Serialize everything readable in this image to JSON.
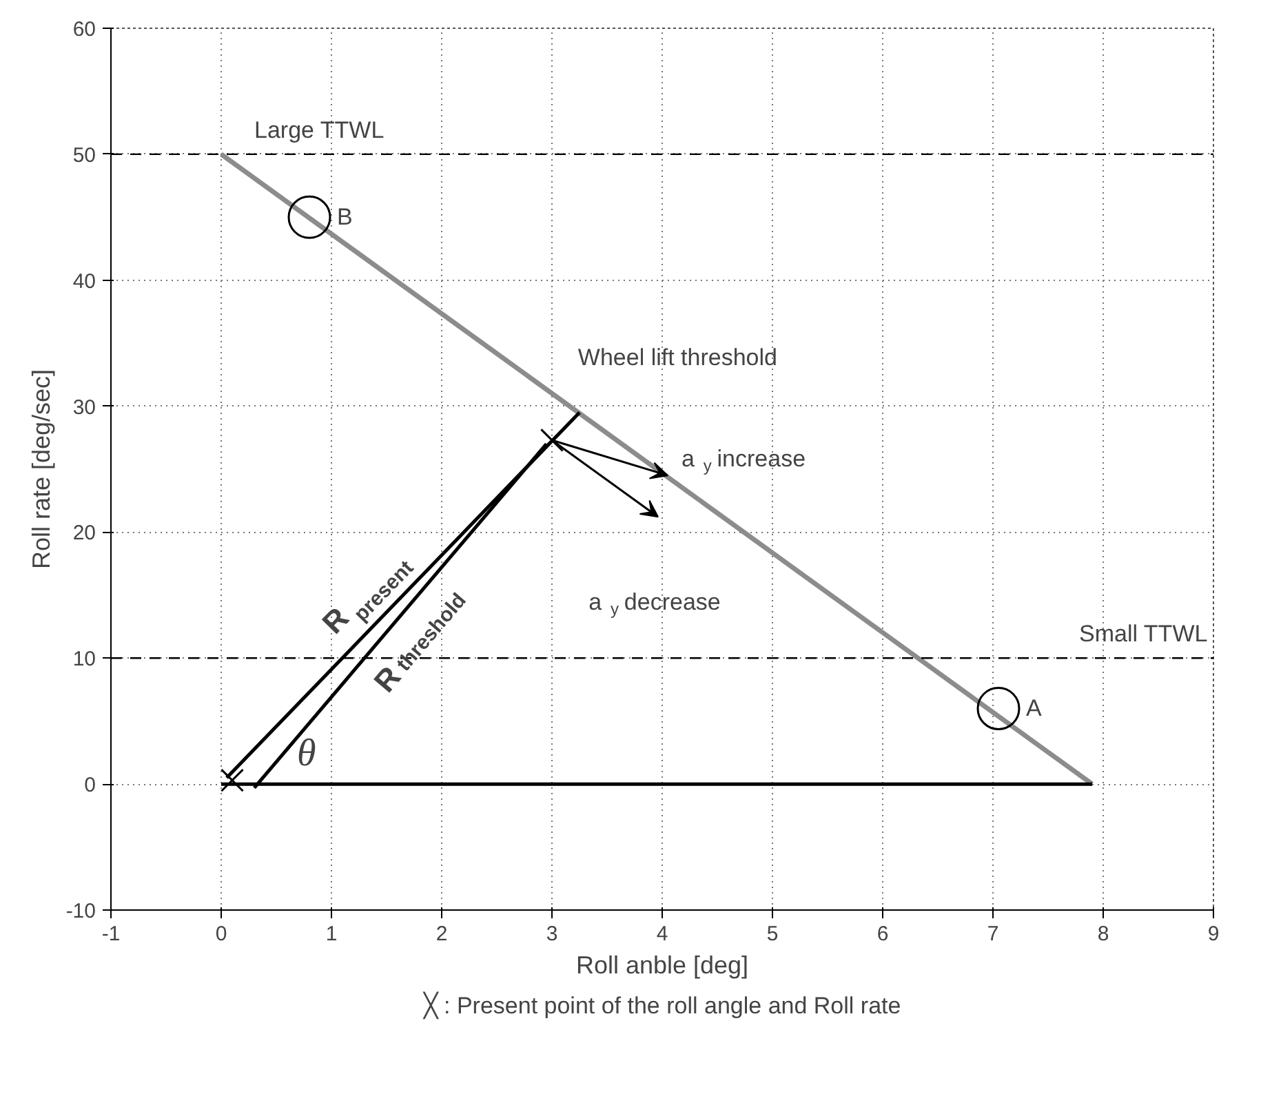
{
  "chart_data": {
    "type": "line",
    "xlabel": "Roll anble [deg]",
    "ylabel": "Roll rate [deg/sec]",
    "xlim": [
      -1,
      9
    ],
    "ylim": [
      -10,
      60
    ],
    "xticks": [
      -1,
      0,
      1,
      2,
      3,
      4,
      5,
      6,
      7,
      8,
      9
    ],
    "yticks": [
      -10,
      0,
      10,
      20,
      30,
      40,
      50,
      60
    ],
    "grid": true,
    "series": [
      {
        "color": "#8c8c8c",
        "x": [
          0,
          7.9
        ],
        "values": [
          50,
          0
        ]
      },
      {
        "color": "#000000",
        "x": [
          0.05,
          3.25
        ],
        "values": [
          0.5,
          29.5
        ]
      },
      {
        "color": "#000000",
        "x": [
          0.3,
          2.95
        ],
        "values": [
          -0.3,
          27
        ]
      },
      {
        "color": "#000000",
        "x": [
          0,
          7.9
        ],
        "values": [
          0,
          0
        ]
      },
      {
        "type": "scatter",
        "marker": "circle",
        "color": "#000000",
        "x": [
          7.05,
          0.8
        ],
        "values": [
          6,
          45
        ]
      },
      {
        "type": "scatter",
        "marker": "cross",
        "color": "#000000",
        "x": [
          0.1,
          3.0
        ],
        "values": [
          0.3,
          27.3
        ]
      }
    ],
    "ref_lines": [
      {
        "axis": "y",
        "value": 50,
        "label": "Large TTWL",
        "line_style": "dashed",
        "color": "#000000"
      },
      {
        "axis": "y",
        "value": 10,
        "label": "Small TTWL",
        "line_style": "dashed",
        "color": "#000000"
      }
    ],
    "annotations": [
      {
        "text": "A",
        "x": 7.3,
        "y": 6
      },
      {
        "text": "B",
        "x": 1.05,
        "y": 45
      },
      "Wheel lift threshold",
      {
        "text": "a$_{y}$ increase",
        "x": 4.05,
        "y": 24.5
      },
      "a$_{y}$ decrease",
      "R$_{present}$",
      "R$_{threshold}$",
      "θ",
      "╳ : Present point of the roll angle and Roll rate"
    ]
  }
}
